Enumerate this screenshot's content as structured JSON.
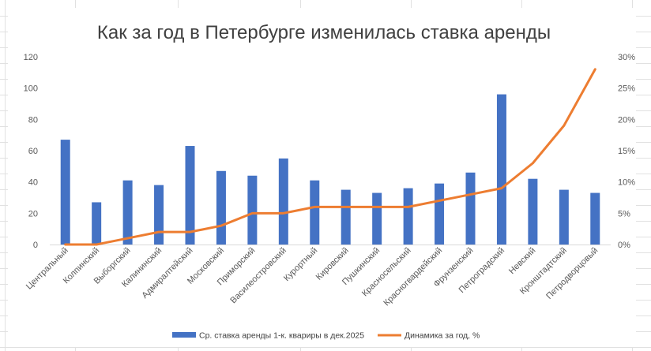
{
  "chart_data": {
    "type": "bar",
    "title": "Как за год в Петербурге изменилась  ставка аренды",
    "categories": [
      "Центральный",
      "Колпинский",
      "Выборгский",
      "Калининский",
      "Адмиралтейский",
      "Московский",
      "Приморский",
      "Василеостровский",
      "Курортный",
      "Кировский",
      "Пушкинский",
      "Красносельский",
      "Красногвардейский",
      "Фрунзенский",
      "Петроградский",
      "Невский",
      "Кронштадтский",
      "Петродворцовый"
    ],
    "series": [
      {
        "name": "Ср. ставка аренды 1-к. квариры в дек.2025",
        "type": "bar",
        "axis": "left",
        "color": "#4472C4",
        "values": [
          67,
          27,
          41,
          38,
          63,
          47,
          44,
          55,
          41,
          35,
          33,
          36,
          39,
          46,
          96,
          42,
          35,
          33
        ]
      },
      {
        "name": "Динамика за год, %",
        "type": "line",
        "axis": "right",
        "color": "#ED7D31",
        "values": [
          0,
          0,
          1,
          2,
          2,
          3,
          5,
          5,
          6,
          6,
          6,
          6,
          7,
          8,
          9,
          13,
          19,
          28
        ]
      }
    ],
    "y_left": {
      "min": 0,
      "max": 120,
      "ticks": [
        0,
        20,
        40,
        60,
        80,
        100,
        120
      ]
    },
    "y_right": {
      "min": 0,
      "max": 30,
      "ticks": [
        "0%",
        "5%",
        "10%",
        "15%",
        "20%",
        "25%",
        "30%"
      ]
    },
    "grid": false,
    "legend_position": "bottom"
  }
}
